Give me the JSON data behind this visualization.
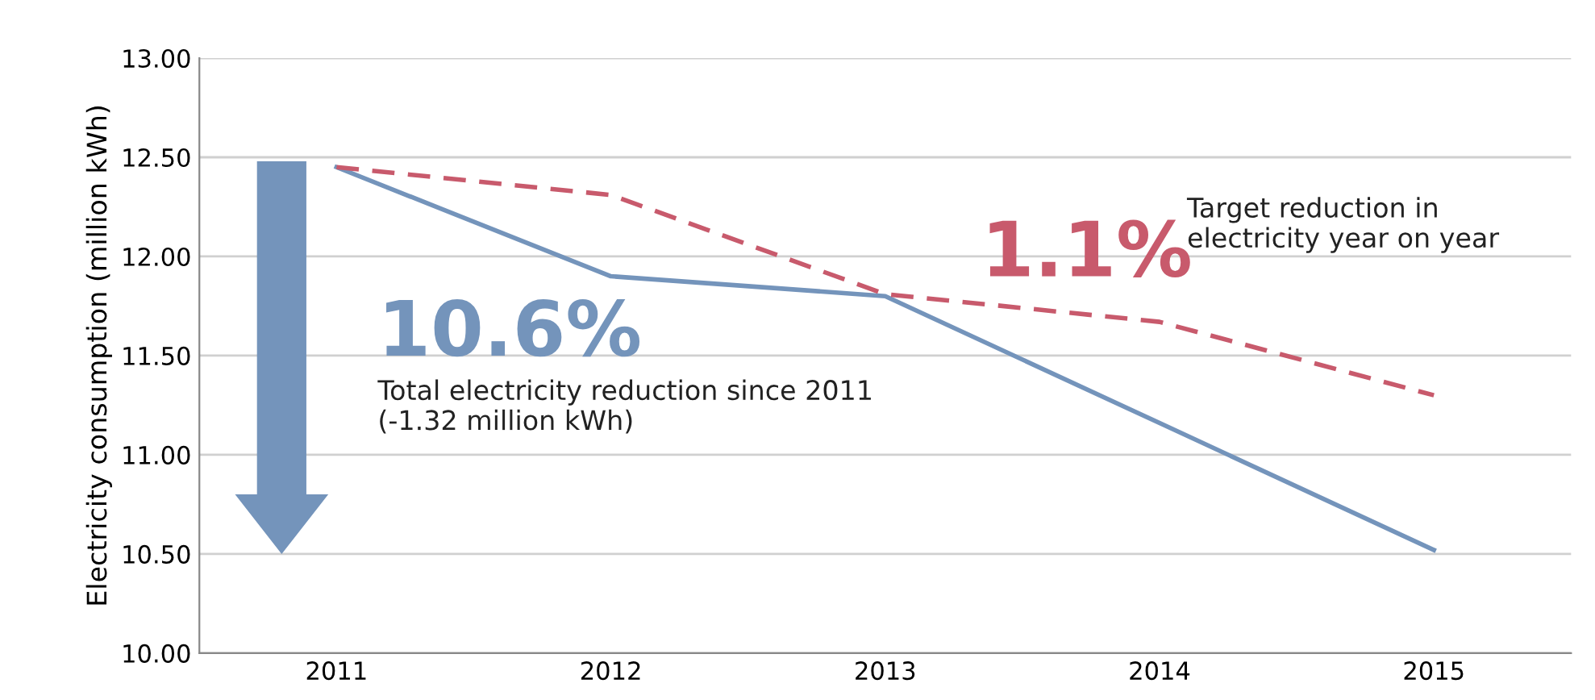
{
  "chart_data": {
    "type": "line",
    "ylabel": "Electricity consumption (million kWh)",
    "categories": [
      "2011",
      "2012",
      "2013",
      "2014",
      "2015"
    ],
    "series": [
      {
        "color": "#7494bb",
        "line_style": "solid",
        "values": [
          12.45,
          11.9,
          11.8,
          11.16,
          10.52
        ]
      },
      {
        "color": "#c85a6c",
        "line_style": "dashed",
        "values": [
          12.45,
          12.31,
          11.81,
          11.67,
          11.3
        ]
      }
    ],
    "ylim": [
      10.0,
      13.0
    ],
    "yticks": [
      {
        "value": 10.0,
        "label": "10.00"
      },
      {
        "value": 10.5,
        "label": "10.50"
      },
      {
        "value": 11.0,
        "label": "11.00"
      },
      {
        "value": 11.5,
        "label": "11.50"
      },
      {
        "value": 12.0,
        "label": "12.00"
      },
      {
        "value": 12.5,
        "label": "12.50"
      },
      {
        "value": 13.0,
        "label": "13.00"
      }
    ],
    "grid": "y",
    "annotations": [
      "10.6%",
      "Total electricity reduction since 2011\n(-1.32 million kWh)",
      "1.1%",
      "Target reduction in\nelectricity year on year"
    ]
  }
}
